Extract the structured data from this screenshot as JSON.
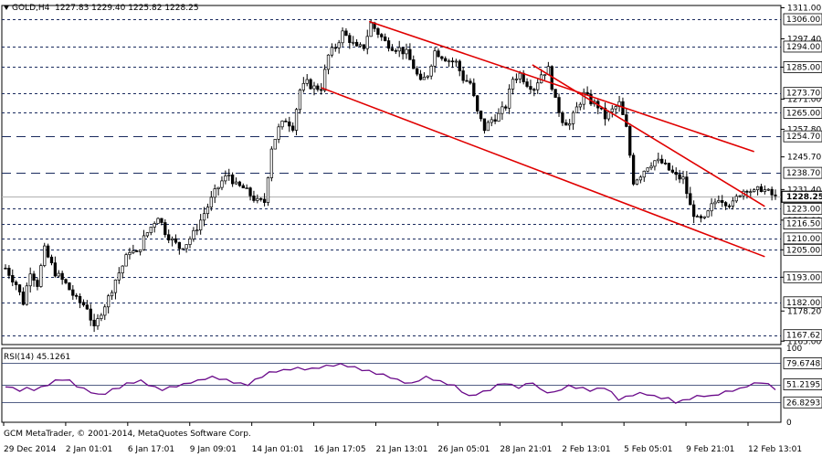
{
  "header": {
    "symbol": "GOLD,H4",
    "ohlc": "1227.83 1229.40 1225.82 1228.25"
  },
  "copyright": "GCM MetaTrader, © 2001-2014, MetaQuotes Software Corp.",
  "chart_data": {
    "type": "candlestick",
    "price_axis": {
      "range": [
        1163.5,
        1312
      ],
      "ticks": [
        "1311.00",
        "1297.40",
        "1285.00",
        "1271.00",
        "1257.80",
        "1245.70",
        "1231.40",
        "1218.00",
        "1205.00",
        "1193.00",
        "1178.20",
        "1165.00"
      ],
      "level_labels": [
        "1306.00",
        "1294.00",
        "1285.00",
        "1273.70",
        "1265.00",
        "1254.70",
        "1238.70",
        "1228.25",
        "1223.00",
        "1216.50",
        "1210.00",
        "1205.00",
        "1193.00",
        "1182.00",
        "1167.62"
      ],
      "levels": [
        {
          "label": "1306.00",
          "style": "short"
        },
        {
          "label": "1294.00",
          "style": "short"
        },
        {
          "label": "1285.00",
          "style": "short"
        },
        {
          "label": "1273.70",
          "style": "short"
        },
        {
          "label": "1265.00",
          "style": "short"
        },
        {
          "label": "1254.70",
          "style": "long"
        },
        {
          "label": "1238.70",
          "style": "long"
        },
        {
          "label": "1223.00",
          "style": "short"
        },
        {
          "label": "1216.50",
          "style": "short"
        },
        {
          "label": "1210.00",
          "style": "short"
        },
        {
          "label": "1205.00",
          "style": "short"
        },
        {
          "label": "1193.00",
          "style": "short"
        },
        {
          "label": "1182.00",
          "style": "short"
        },
        {
          "label": "1167.62",
          "style": "short"
        }
      ],
      "current_price": "1228.25",
      "current_price_value": 1228.25
    },
    "time_axis": [
      "29 Dec 2014",
      "2 Jan 01:01",
      "6 Jan 17:01",
      "9 Jan 09:01",
      "14 Jan 01:01",
      "16 Jan 17:05",
      "21 Jan 13:01",
      "26 Jan 05:01",
      "28 Jan 21:01",
      "2 Feb 13:01",
      "5 Feb 05:01",
      "9 Feb 21:01",
      "12 Feb 13:01"
    ],
    "path": [
      [
        0,
        1197
      ],
      [
        6,
        1190
      ],
      [
        10,
        1182
      ],
      [
        14,
        1196
      ],
      [
        18,
        1190
      ],
      [
        22,
        1205
      ],
      [
        28,
        1195
      ],
      [
        34,
        1190
      ],
      [
        40,
        1183
      ],
      [
        46,
        1180
      ],
      [
        50,
        1170
      ],
      [
        54,
        1178
      ],
      [
        58,
        1184
      ],
      [
        62,
        1192
      ],
      [
        66,
        1198
      ],
      [
        70,
        1205
      ],
      [
        74,
        1203
      ],
      [
        78,
        1210
      ],
      [
        82,
        1215
      ],
      [
        86,
        1220
      ],
      [
        90,
        1213
      ],
      [
        94,
        1209
      ],
      [
        98,
        1206
      ],
      [
        102,
        1208
      ],
      [
        106,
        1212
      ],
      [
        110,
        1218
      ],
      [
        114,
        1224
      ],
      [
        118,
        1230
      ],
      [
        122,
        1235
      ],
      [
        126,
        1238
      ],
      [
        130,
        1233
      ],
      [
        134,
        1232
      ],
      [
        138,
        1229
      ],
      [
        142,
        1226
      ],
      [
        146,
        1226
      ],
      [
        150,
        1250
      ],
      [
        154,
        1258
      ],
      [
        158,
        1262
      ],
      [
        162,
        1259
      ],
      [
        166,
        1275
      ],
      [
        170,
        1278
      ],
      [
        174,
        1276
      ],
      [
        178,
        1276
      ],
      [
        182,
        1290
      ],
      [
        186,
        1294
      ],
      [
        190,
        1300
      ],
      [
        194,
        1297
      ],
      [
        198,
        1293
      ],
      [
        202,
        1294
      ],
      [
        206,
        1304
      ],
      [
        210,
        1300
      ],
      [
        214,
        1296
      ],
      [
        218,
        1294
      ],
      [
        222,
        1293
      ],
      [
        226,
        1291
      ],
      [
        230,
        1285
      ],
      [
        234,
        1278
      ],
      [
        238,
        1282
      ],
      [
        242,
        1292
      ],
      [
        246,
        1290
      ],
      [
        250,
        1288
      ],
      [
        254,
        1287
      ],
      [
        258,
        1280
      ],
      [
        262,
        1278
      ],
      [
        266,
        1265
      ],
      [
        270,
        1258
      ],
      [
        274,
        1262
      ],
      [
        278,
        1264
      ],
      [
        282,
        1268
      ],
      [
        286,
        1280
      ],
      [
        290,
        1282
      ],
      [
        294,
        1278
      ],
      [
        298,
        1276
      ],
      [
        302,
        1282
      ],
      [
        306,
        1284
      ],
      [
        310,
        1270
      ],
      [
        314,
        1262
      ],
      [
        318,
        1260
      ],
      [
        322,
        1267
      ],
      [
        326,
        1273
      ],
      [
        330,
        1270
      ],
      [
        334,
        1268
      ],
      [
        338,
        1263
      ],
      [
        342,
        1266
      ],
      [
        346,
        1269
      ],
      [
        350,
        1258
      ],
      [
        354,
        1235
      ],
      [
        358,
        1238
      ],
      [
        362,
        1242
      ],
      [
        366,
        1244
      ],
      [
        370,
        1243
      ],
      [
        374,
        1240
      ],
      [
        378,
        1237
      ],
      [
        382,
        1236
      ],
      [
        386,
        1224
      ],
      [
        390,
        1218
      ],
      [
        394,
        1218
      ],
      [
        398,
        1224
      ],
      [
        402,
        1228
      ],
      [
        406,
        1226
      ],
      [
        410,
        1225
      ],
      [
        414,
        1230
      ],
      [
        418,
        1232
      ],
      [
        422,
        1230
      ],
      [
        426,
        1232
      ],
      [
        430,
        1230
      ],
      [
        434,
        1228
      ]
    ],
    "trendlines": [
      {
        "from": [
          205,
          1305
        ],
        "to": [
          422,
          1248
        ]
      },
      {
        "from": [
          178,
          1276
        ],
        "to": [
          428,
          1202
        ]
      },
      {
        "from": [
          297,
          1286
        ],
        "to": [
          428,
          1224
        ]
      }
    ],
    "rsi": {
      "label": "RSI(14) 45.1261",
      "ticks": [
        "100",
        "79.6748",
        "51.2195",
        "26.8293",
        "0"
      ],
      "levels": [
        79.6748,
        51.2195,
        26.8293
      ],
      "values": [
        49,
        46,
        43,
        46,
        44,
        47,
        51,
        56,
        58,
        56,
        49,
        45,
        41,
        37,
        39,
        44,
        47,
        52,
        54,
        56,
        51,
        47,
        44,
        47,
        49,
        51,
        54,
        56,
        59,
        61,
        59,
        57,
        54,
        52,
        51,
        57,
        62,
        67,
        69,
        70,
        72,
        73,
        72,
        72,
        74,
        76,
        77,
        78,
        76,
        74,
        71,
        69,
        66,
        64,
        61,
        57,
        54,
        52,
        57,
        61,
        58,
        55,
        52,
        49,
        42,
        35,
        38,
        41,
        44,
        50,
        53,
        50,
        47,
        51,
        54,
        44,
        41,
        40,
        45,
        49,
        47,
        46,
        43,
        45,
        47,
        40,
        31,
        34,
        37,
        39,
        38,
        35,
        33,
        32,
        27,
        29,
        32,
        35,
        36,
        35,
        38,
        41,
        43,
        45,
        49,
        52,
        54,
        51,
        45
      ]
    }
  }
}
